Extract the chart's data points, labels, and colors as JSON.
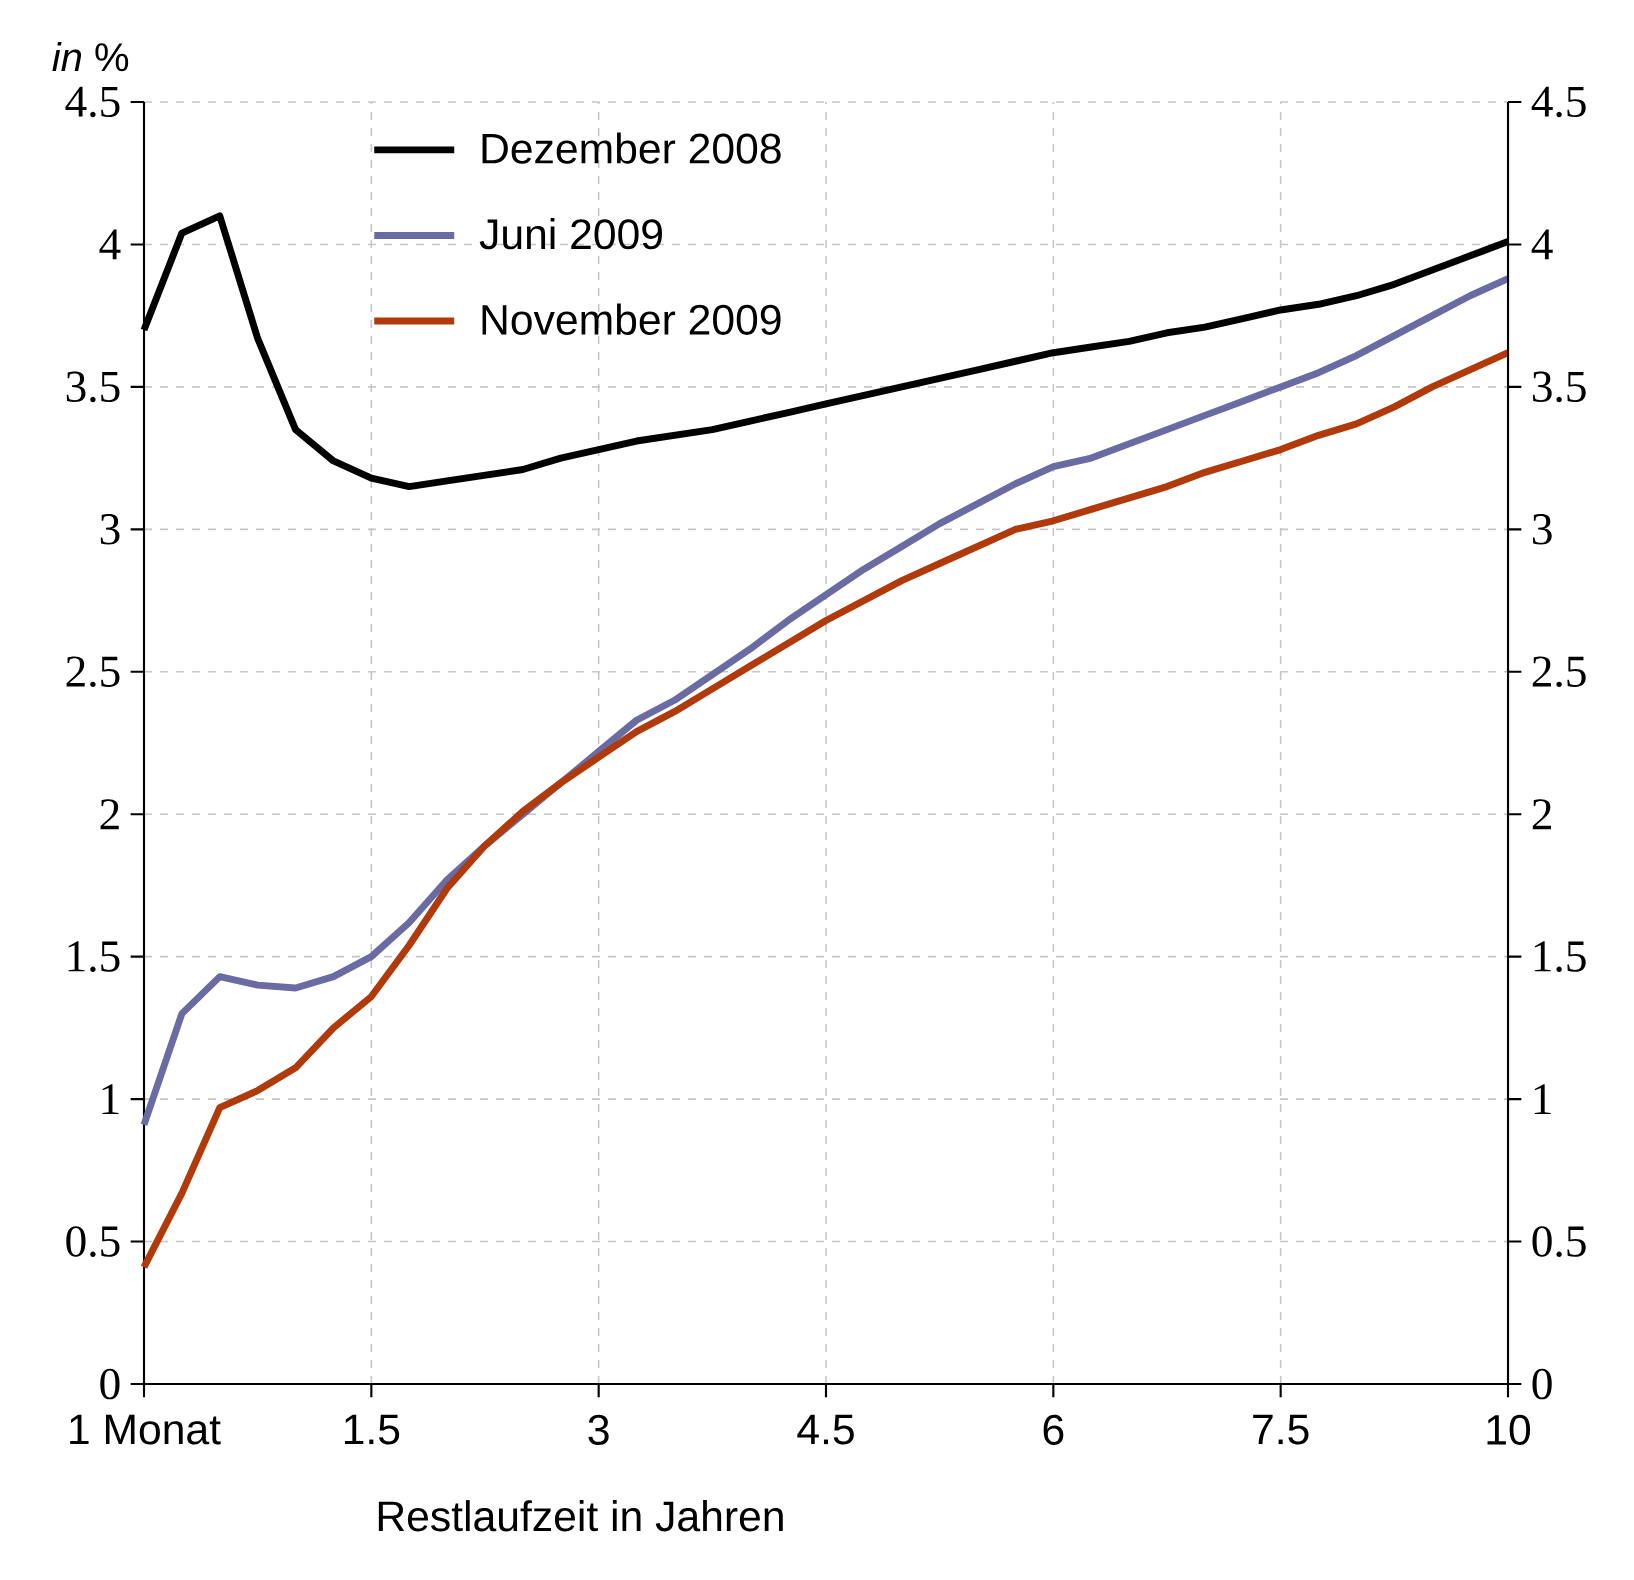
{
  "chart_data": {
    "type": "line",
    "ylabel": "*in* %",
    "xlabel": "Restlaufzeit in Jahren",
    "categories": [
      "1 Monat",
      null,
      null,
      null,
      null,
      null,
      "1.5",
      null,
      null,
      null,
      null,
      null,
      "3",
      null,
      null,
      null,
      null,
      null,
      "4.5",
      null,
      null,
      null,
      null,
      null,
      "6",
      null,
      null,
      null,
      null,
      null,
      "7.5",
      null,
      null,
      null,
      null,
      null,
      "10"
    ],
    "series": [
      {
        "name": "Dezember 2008",
        "color": "#000000",
        "values": [
          3.7,
          4.04,
          4.1,
          3.67,
          3.35,
          3.24,
          3.18,
          3.15,
          3.17,
          3.19,
          3.21,
          3.25,
          3.28,
          3.31,
          3.33,
          3.35,
          3.38,
          3.41,
          3.44,
          3.47,
          3.5,
          3.53,
          3.56,
          3.59,
          3.62,
          3.64,
          3.66,
          3.69,
          3.71,
          3.74,
          3.77,
          3.79,
          3.82,
          3.86,
          3.91,
          3.96,
          4.01
        ]
      },
      {
        "name": "Juni 2009",
        "color": "#6b6ba3",
        "values": [
          0.91,
          1.3,
          1.43,
          1.4,
          1.39,
          1.43,
          1.5,
          1.62,
          1.77,
          1.89,
          2.0,
          2.11,
          2.22,
          2.33,
          2.4,
          2.49,
          2.58,
          2.68,
          2.77,
          2.86,
          2.94,
          3.02,
          3.09,
          3.16,
          3.22,
          3.25,
          3.3,
          3.35,
          3.4,
          3.45,
          3.5,
          3.55,
          3.61,
          3.68,
          3.75,
          3.82,
          3.88
        ]
      },
      {
        "name": "November 2009",
        "color": "#b03a0a",
        "values": [
          0.41,
          0.67,
          0.97,
          1.03,
          1.11,
          1.25,
          1.36,
          1.54,
          1.74,
          1.89,
          2.01,
          2.11,
          2.2,
          2.29,
          2.36,
          2.44,
          2.52,
          2.6,
          2.68,
          2.75,
          2.82,
          2.88,
          2.94,
          3.0,
          3.03,
          3.07,
          3.11,
          3.15,
          3.2,
          3.24,
          3.28,
          3.33,
          3.37,
          3.43,
          3.5,
          3.56,
          3.62
        ]
      }
    ],
    "ylim": [
      0,
      4.5
    ],
    "yticks": [
      0,
      0.5,
      1,
      1.5,
      2,
      2.5,
      3,
      3.5,
      4,
      4.5
    ],
    "y2lim": [
      0,
      4.5
    ],
    "y2ticks": [
      0,
      0.5,
      1,
      1.5,
      2,
      2.5,
      3,
      3.5,
      4,
      4.5
    ],
    "grid": true,
    "legend": "top left",
    "marker": "none",
    "line_style": "solid"
  }
}
